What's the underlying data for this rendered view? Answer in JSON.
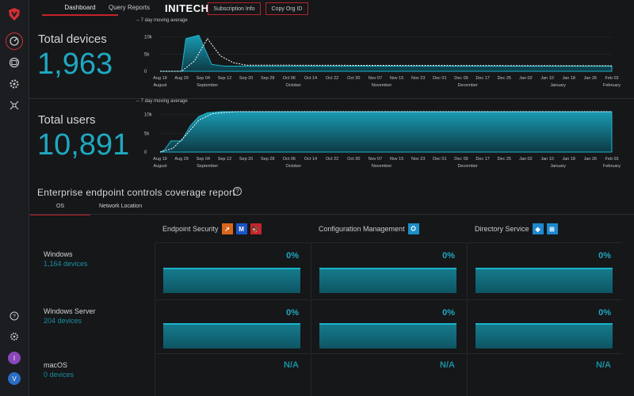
{
  "nav": {
    "tabs": [
      {
        "label": "Dashboard"
      },
      {
        "label": "Query Reports"
      }
    ],
    "brand": "INITECH",
    "subscription_info_label": "Subscription Info",
    "copy_org_id_label": "Copy Org ID"
  },
  "sidebar": {
    "icons": [
      "logo-icon",
      "dashboard-icon",
      "devices-icon",
      "settings-gear-icon",
      "hub-icon"
    ],
    "bottom_icons": [
      "help-icon",
      "settings-icon"
    ],
    "avatars": [
      {
        "letter": "I",
        "color": "#8b47b9"
      },
      {
        "letter": "V",
        "color": "#2b6cc4"
      }
    ]
  },
  "devices": {
    "label": "Total devices",
    "value": "1,963",
    "chart_data": {
      "type": "area",
      "legend": "7 day moving average",
      "y_ticks": [
        "10k",
        "5k",
        "0"
      ],
      "ylim": [
        0,
        12000
      ],
      "x_ticks": [
        "Aug 19",
        "Aug 29",
        "Sep 04",
        "Sep 12",
        "Sep 20",
        "Sep 28",
        "Oct 06",
        "Oct 14",
        "Oct 22",
        "Oct 30",
        "Nov 07",
        "Nov 15",
        "Nov 23",
        "Dec 01",
        "Dec 09",
        "Dec 17",
        "Dec 25",
        "Jan 02",
        "Jan 10",
        "Jan 18",
        "Jan 26",
        "Feb 03"
      ],
      "months": [
        "August",
        "September",
        "October",
        "November",
        "December",
        "January",
        "February"
      ],
      "series": [
        {
          "x": [
            0,
            1,
            1.2,
            1.8,
            2.4,
            3,
            21
          ],
          "values": [
            0,
            0,
            9500,
            10500,
            2000,
            1500,
            1500
          ]
        }
      ],
      "moving_average": {
        "x": [
          0,
          1,
          1.6,
          2.2,
          2.8,
          3.4,
          4,
          21
        ],
        "values": [
          0,
          0,
          3000,
          9500,
          4500,
          2500,
          1800,
          1600
        ]
      }
    }
  },
  "users": {
    "label": "Total users",
    "value": "10,891",
    "chart_data": {
      "type": "area",
      "legend": "7 day moving average",
      "y_ticks": [
        "10k",
        "5k",
        "0"
      ],
      "ylim": [
        0,
        11000
      ],
      "x_ticks": [
        "Aug 19",
        "Aug 29",
        "Sep 04",
        "Sep 12",
        "Sep 20",
        "Sep 28",
        "Oct 06",
        "Oct 14",
        "Oct 22",
        "Oct 30",
        "Nov 07",
        "Nov 15",
        "Nov 23",
        "Dec 01",
        "Dec 09",
        "Dec 17",
        "Dec 25",
        "Jan 02",
        "Jan 10",
        "Jan 18",
        "Jan 26",
        "Feb 03"
      ],
      "months": [
        "August",
        "September",
        "October",
        "November",
        "December",
        "January",
        "February"
      ],
      "series": [
        {
          "x": [
            0,
            0.2,
            0.5,
            1,
            1.4,
            1.8,
            2.2,
            2.8,
            21
          ],
          "values": [
            0,
            500,
            3000,
            3000,
            7000,
            9500,
            10500,
            10800,
            10800
          ]
        }
      ],
      "moving_average": {
        "x": [
          0,
          0.6,
          1.2,
          1.8,
          2.4,
          3,
          3.6,
          21
        ],
        "values": [
          0,
          1000,
          4500,
          8500,
          10200,
          10600,
          10800,
          10800
        ]
      }
    }
  },
  "report": {
    "title": "Enterprise endpoint controls coverage report",
    "subtabs": [
      {
        "label": "OS"
      },
      {
        "label": "Network Location"
      }
    ],
    "columns": [
      {
        "label": "Endpoint Security",
        "badges": [
          {
            "icon": "endpoint-orange-icon",
            "color": "#d9661d",
            "glyph": "↗"
          },
          {
            "icon": "malwarebytes-icon",
            "color": "#1b55c5",
            "glyph": "M"
          },
          {
            "icon": "crowdstrike-icon",
            "color": "#c4252c",
            "glyph": "🦅"
          }
        ]
      },
      {
        "label": "Configuration Management",
        "badges": [
          {
            "icon": "config-mgmt-icon",
            "color": "#1c8ec7",
            "glyph": "⛭"
          }
        ]
      },
      {
        "label": "Directory Service",
        "badges": [
          {
            "icon": "azure-ad-icon",
            "color": "#1e88d0",
            "glyph": "◆"
          },
          {
            "icon": "windows-icon",
            "color": "#1e88d0",
            "glyph": "⊞"
          }
        ]
      }
    ],
    "rows": [
      {
        "name": "Windows",
        "sub": "1,164 devices",
        "cells": [
          "0%",
          "0%",
          "0%"
        ],
        "coverage": [
          0,
          0,
          0
        ]
      },
      {
        "name": "Windows Server",
        "sub": "204 devices",
        "cells": [
          "0%",
          "0%",
          "0%"
        ],
        "coverage": [
          0,
          0,
          0
        ]
      },
      {
        "name": "macOS",
        "sub": "0 devices",
        "cells": [
          "N/A",
          "N/A",
          "N/A"
        ]
      }
    ]
  }
}
